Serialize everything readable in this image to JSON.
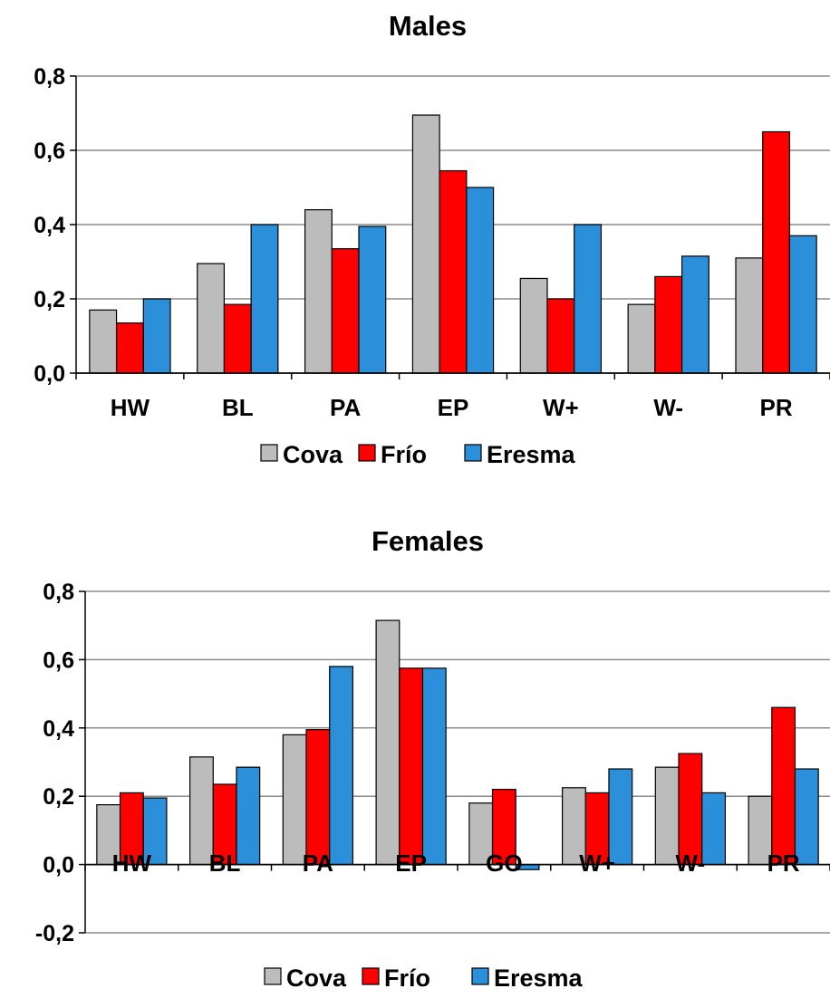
{
  "chart_data": [
    {
      "type": "bar",
      "title": "Males",
      "categories": [
        "HW",
        "BL",
        "PA",
        "EP",
        "W+",
        "W-",
        "PR"
      ],
      "series": [
        {
          "name": "Cova",
          "values": [
            0.17,
            0.295,
            0.44,
            0.695,
            0.255,
            0.185,
            0.31
          ]
        },
        {
          "name": "Frío",
          "values": [
            0.135,
            0.185,
            0.335,
            0.545,
            0.2,
            0.26,
            0.65
          ]
        },
        {
          "name": "Eresma",
          "values": [
            0.2,
            0.4,
            0.395,
            0.5,
            0.4,
            0.315,
            0.37
          ]
        }
      ],
      "ylim": [
        0,
        0.8
      ],
      "yticks": [
        "0,0",
        "0,2",
        "0,4",
        "0,6",
        "0,8"
      ],
      "grid": true,
      "legend": "bottom"
    },
    {
      "type": "bar",
      "title": "Females",
      "categories": [
        "HW",
        "BL",
        "PA",
        "EP",
        "GO",
        "W+",
        "W-",
        "PR"
      ],
      "series": [
        {
          "name": "Cova",
          "values": [
            0.175,
            0.315,
            0.38,
            0.715,
            0.18,
            0.225,
            0.285,
            0.2
          ]
        },
        {
          "name": "Frío",
          "values": [
            0.21,
            0.235,
            0.395,
            0.575,
            0.22,
            0.21,
            0.325,
            0.46
          ]
        },
        {
          "name": "Eresma",
          "values": [
            0.195,
            0.285,
            0.58,
            0.575,
            -0.015,
            0.28,
            0.21,
            0.28
          ]
        }
      ],
      "ylim": [
        -0.2,
        0.8
      ],
      "yticks": [
        "-0,2",
        "0,0",
        "0,2",
        "0,4",
        "0,6",
        "0,8"
      ],
      "grid": true,
      "legend": "bottom"
    }
  ],
  "colors": {
    "Cova": "#bcbcbc",
    "Frío": "#ff0000",
    "Eresma": "#2b8fd9",
    "grid": "#8c8c8c",
    "axis": "#000000",
    "bar_outline": "#000000"
  }
}
